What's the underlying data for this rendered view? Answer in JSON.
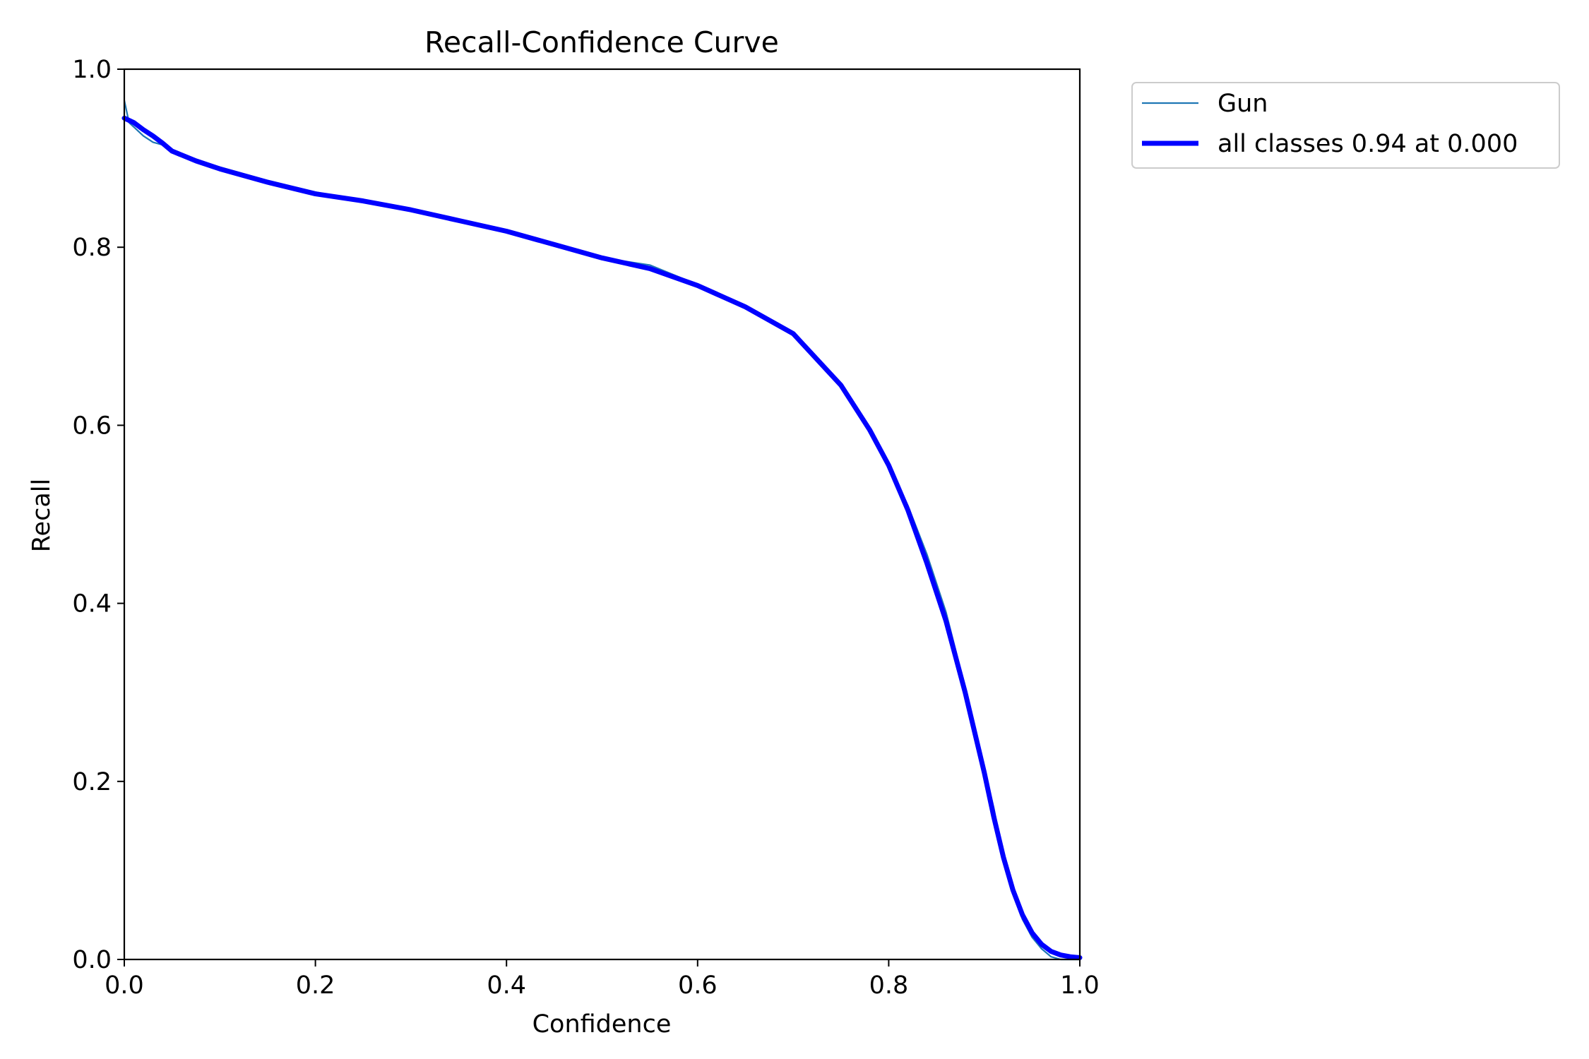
{
  "chart_data": {
    "type": "line",
    "title": "Recall-Confidence Curve",
    "xlabel": "Confidence",
    "ylabel": "Recall",
    "xlim": [
      0,
      1
    ],
    "ylim": [
      0,
      1
    ],
    "xticks": [
      "0.0",
      "0.2",
      "0.4",
      "0.6",
      "0.8",
      "1.0"
    ],
    "yticks": [
      "0.0",
      "0.2",
      "0.4",
      "0.6",
      "0.8",
      "1.0"
    ],
    "grid": false,
    "legend_position": "outside-top-right",
    "series": [
      {
        "name": "Gun",
        "color": "#1f77b4",
        "x": [
          0.0,
          0.002,
          0.005,
          0.01,
          0.02,
          0.03,
          0.04,
          0.05,
          0.075,
          0.1,
          0.15,
          0.2,
          0.25,
          0.3,
          0.35,
          0.4,
          0.45,
          0.5,
          0.55,
          0.6,
          0.65,
          0.7,
          0.75,
          0.78,
          0.8,
          0.82,
          0.84,
          0.86,
          0.88,
          0.9,
          0.91,
          0.92,
          0.93,
          0.94,
          0.95,
          0.96,
          0.97,
          0.98,
          0.99,
          1.0
        ],
        "y": [
          0.965,
          0.955,
          0.94,
          0.935,
          0.925,
          0.918,
          0.915,
          0.908,
          0.897,
          0.89,
          0.875,
          0.862,
          0.852,
          0.842,
          0.83,
          0.818,
          0.802,
          0.788,
          0.78,
          0.758,
          0.735,
          0.705,
          0.645,
          0.595,
          0.555,
          0.51,
          0.455,
          0.39,
          0.305,
          0.215,
          0.17,
          0.115,
          0.075,
          0.045,
          0.025,
          0.012,
          0.003,
          0.0,
          0.0,
          0.0
        ]
      },
      {
        "name": "all classes 0.94 at 0.000",
        "color": "#0000ff",
        "x": [
          0.0,
          0.01,
          0.02,
          0.03,
          0.04,
          0.05,
          0.075,
          0.1,
          0.15,
          0.2,
          0.25,
          0.3,
          0.35,
          0.4,
          0.45,
          0.5,
          0.55,
          0.6,
          0.65,
          0.7,
          0.75,
          0.78,
          0.8,
          0.82,
          0.84,
          0.86,
          0.88,
          0.9,
          0.91,
          0.92,
          0.93,
          0.94,
          0.95,
          0.96,
          0.97,
          0.98,
          0.99,
          1.0
        ],
        "y": [
          0.945,
          0.94,
          0.932,
          0.925,
          0.917,
          0.908,
          0.897,
          0.888,
          0.873,
          0.86,
          0.852,
          0.842,
          0.83,
          0.818,
          0.803,
          0.788,
          0.776,
          0.757,
          0.733,
          0.703,
          0.645,
          0.595,
          0.555,
          0.505,
          0.445,
          0.38,
          0.3,
          0.21,
          0.16,
          0.115,
          0.078,
          0.05,
          0.03,
          0.017,
          0.009,
          0.005,
          0.003,
          0.002
        ]
      }
    ]
  }
}
